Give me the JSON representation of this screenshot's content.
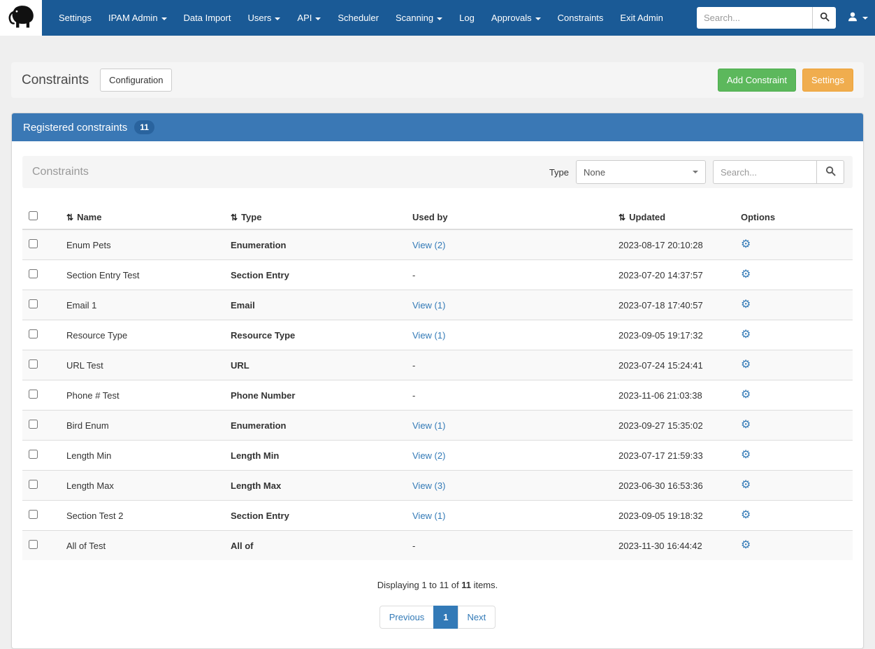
{
  "colors": {
    "navbar_bg": "#1a5a96",
    "panel_header_bg": "#3a78b5",
    "primary_link": "#337ab7",
    "success_button": "#5cb85c",
    "warning_button": "#f0ad4e"
  },
  "icons": {
    "sort": "⇅",
    "gear": "⚙",
    "brand": "mammoth-logo",
    "search": "magnifier-icon",
    "user": "user-icon"
  },
  "navbar": {
    "items": [
      {
        "label": "Settings",
        "dropdown": false
      },
      {
        "label": "IPAM Admin",
        "dropdown": true
      },
      {
        "label": "Data Import",
        "dropdown": false
      },
      {
        "label": "Users",
        "dropdown": true
      },
      {
        "label": "API",
        "dropdown": true
      },
      {
        "label": "Scheduler",
        "dropdown": false
      },
      {
        "label": "Scanning",
        "dropdown": true
      },
      {
        "label": "Log",
        "dropdown": false
      },
      {
        "label": "Approvals",
        "dropdown": true
      },
      {
        "label": "Constraints",
        "dropdown": false
      },
      {
        "label": "Exit Admin",
        "dropdown": false
      }
    ],
    "search_placeholder": "Search..."
  },
  "page_header": {
    "title": "Constraints",
    "configuration_button": "Configuration",
    "add_constraint_button": "Add Constraint",
    "settings_button": "Settings"
  },
  "panel": {
    "title": "Registered constraints",
    "count_badge": "11",
    "toolbar": {
      "label": "Constraints",
      "type_label": "Type",
      "type_selected": "None",
      "search_placeholder": "Search..."
    },
    "table": {
      "headers": [
        {
          "label": "Name",
          "sortable": true
        },
        {
          "label": "Type",
          "sortable": true
        },
        {
          "label": "Used by",
          "sortable": false
        },
        {
          "label": "Updated",
          "sortable": true
        },
        {
          "label": "Options",
          "sortable": false
        }
      ],
      "rows": [
        {
          "name": "Enum Pets",
          "type": "Enumeration",
          "used_by": "View (2)",
          "used_by_link": true,
          "updated": "2023-08-17 20:10:28"
        },
        {
          "name": "Section Entry Test",
          "type": "Section Entry",
          "used_by": "-",
          "used_by_link": false,
          "updated": "2023-07-20 14:37:57"
        },
        {
          "name": "Email 1",
          "type": "Email",
          "used_by": "View (1)",
          "used_by_link": true,
          "updated": "2023-07-18 17:40:57"
        },
        {
          "name": "Resource Type",
          "type": "Resource Type",
          "used_by": "View (1)",
          "used_by_link": true,
          "updated": "2023-09-05 19:17:32"
        },
        {
          "name": "URL Test",
          "type": "URL",
          "used_by": "-",
          "used_by_link": false,
          "updated": "2023-07-24 15:24:41"
        },
        {
          "name": "Phone # Test",
          "type": "Phone Number",
          "used_by": "-",
          "used_by_link": false,
          "updated": "2023-11-06 21:03:38"
        },
        {
          "name": "Bird Enum",
          "type": "Enumeration",
          "used_by": "View (1)",
          "used_by_link": true,
          "updated": "2023-09-27 15:35:02"
        },
        {
          "name": "Length Min",
          "type": "Length Min",
          "used_by": "View (2)",
          "used_by_link": true,
          "updated": "2023-07-17 21:59:33"
        },
        {
          "name": "Length Max",
          "type": "Length Max",
          "used_by": "View (3)",
          "used_by_link": true,
          "updated": "2023-06-30 16:53:36"
        },
        {
          "name": "Section Test 2",
          "type": "Section Entry",
          "used_by": "View (1)",
          "used_by_link": true,
          "updated": "2023-09-05 19:18:32"
        },
        {
          "name": "All of Test",
          "type": "All of",
          "used_by": "-",
          "used_by_link": false,
          "updated": "2023-11-30 16:44:42"
        }
      ]
    },
    "summary": {
      "prefix": "Displaying 1 to 11 of ",
      "count": "11",
      "suffix": " items."
    },
    "pagination": {
      "previous": "Previous",
      "current_page": "1",
      "next": "Next"
    }
  }
}
